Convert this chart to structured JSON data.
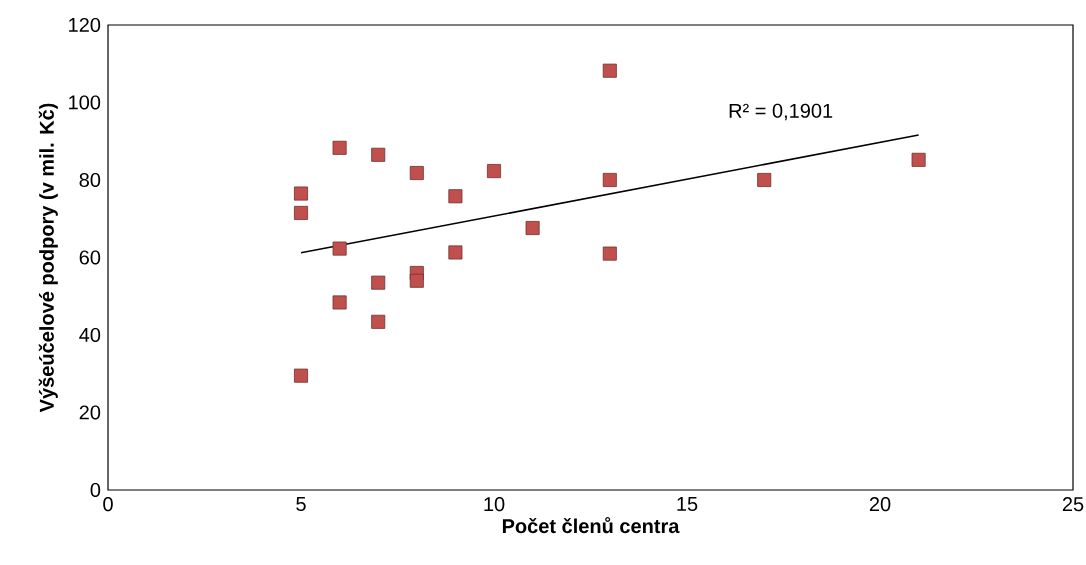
{
  "chart_data": {
    "type": "scatter",
    "xlabel": "Počet členů centra",
    "ylabel": "Výšeúčelové podpory (v mil. Kč)",
    "xlim": [
      0,
      25
    ],
    "xticks": [
      0,
      5,
      10,
      15,
      20,
      25
    ],
    "ylim": [
      0,
      120
    ],
    "yticks": [
      0,
      20,
      40,
      60,
      80,
      100,
      120
    ],
    "grid": false,
    "marker": "square",
    "annotations": [
      "R² = 0,1901"
    ],
    "series": [
      {
        "color": "#c0504d",
        "x": [
          5,
          5,
          5,
          6,
          6,
          6,
          7,
          7,
          7,
          8,
          8,
          8,
          9,
          9,
          10,
          11,
          13,
          13,
          13,
          17,
          21
        ],
        "values": [
          76.5,
          71.5,
          29.5,
          88.3,
          62.3,
          48.4,
          86.5,
          53.5,
          43.4,
          81.8,
          56,
          54,
          75.8,
          61.3,
          82.3,
          67.6,
          108.2,
          80,
          61,
          80,
          85.2
        ]
      },
      {
        "type": "line",
        "color": "#000000",
        "marker": "none",
        "x": [
          5,
          21
        ],
        "values": [
          61.2,
          91.6
        ]
      }
    ]
  }
}
